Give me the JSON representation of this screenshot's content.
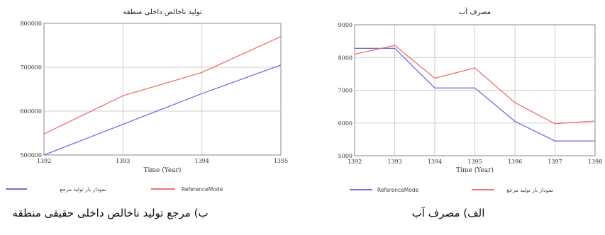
{
  "chart_data": [
    {
      "type": "line",
      "title": "تولید ناخالص داخلی منطقه",
      "xlabel": "Time (Year)",
      "ylabel": "",
      "x": [
        1392,
        1393,
        1394,
        1395
      ],
      "xticks": [
        "1392",
        "1393",
        "1394",
        "1395"
      ],
      "ylim": [
        500000,
        800000
      ],
      "yticks": [
        "500000",
        "600000",
        "700000",
        "800000"
      ],
      "grid": true,
      "legend_position": "bottom",
      "series": [
        {
          "name": "نمودار بار تولید مرجع",
          "color": "#7070e0",
          "values": [
            500000,
            570000,
            640000,
            705000
          ]
        },
        {
          "name": "ReferenceMode",
          "color": "#f07070",
          "values": [
            548000,
            635000,
            688000,
            770000
          ]
        }
      ],
      "caption": "ب) مرجع تولید ناخالص داخلی حقیقی منطقه"
    },
    {
      "type": "line",
      "title": "مصرف آب",
      "xlabel": "Time (Year)",
      "ylabel": "",
      "x": [
        1392,
        1393,
        1394,
        1395,
        1396,
        1397,
        1398
      ],
      "xticks": [
        "1392",
        "1393",
        "1394",
        "1395",
        "1396",
        "1397",
        "1398"
      ],
      "ylim": [
        5000,
        9000
      ],
      "yticks": [
        "5000",
        "6000",
        "7000",
        "8000",
        "9000"
      ],
      "grid": true,
      "legend_position": "bottom",
      "series": [
        {
          "name": "ReferenceMode",
          "color": "#7070e0",
          "values": [
            8280,
            8280,
            7070,
            7070,
            6050,
            5450,
            5450
          ]
        },
        {
          "name": "نمودار بار تولید مرجع",
          "color": "#f07070",
          "values": [
            8100,
            8370,
            7370,
            7680,
            6620,
            5980,
            6060
          ]
        }
      ],
      "caption": "الف) مصرف آب"
    }
  ]
}
